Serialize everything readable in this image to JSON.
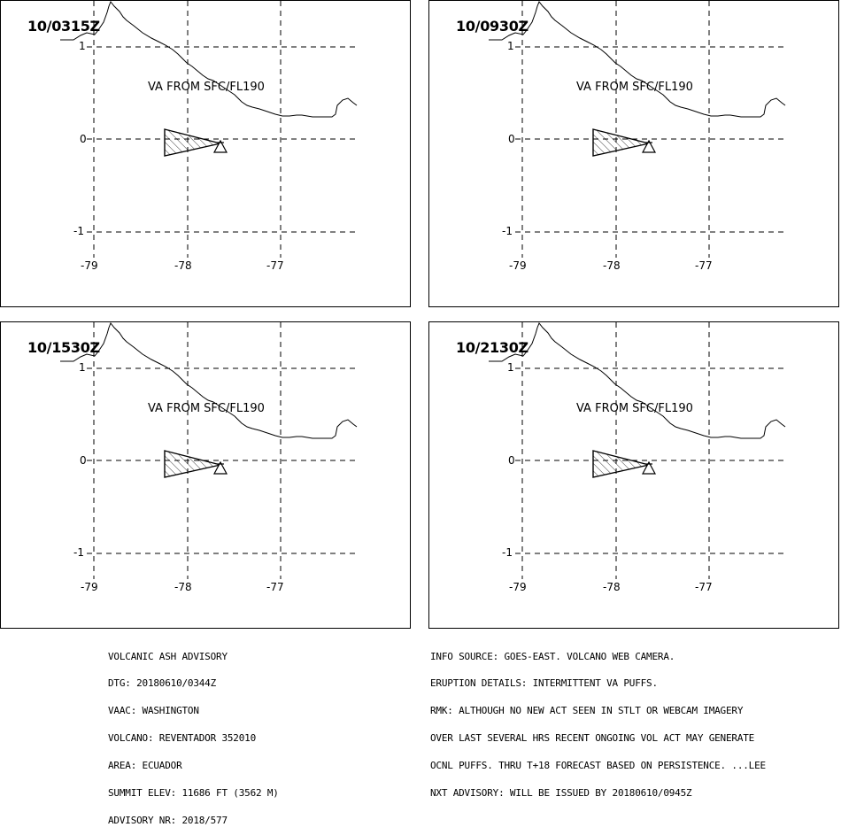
{
  "panels": [
    {
      "time": "10/0315Z",
      "va_label": "VA FROM SFC/FL190"
    },
    {
      "time": "10/0930Z",
      "va_label": "VA FROM SFC/FL190"
    },
    {
      "time": "10/1530Z",
      "va_label": "VA FROM SFC/FL190"
    },
    {
      "time": "10/2130Z",
      "va_label": "VA FROM SFC/FL190"
    }
  ],
  "axes": {
    "lat_ticks": [
      "1",
      "0",
      "-1"
    ],
    "lon_ticks": [
      "-79",
      "-78",
      "-77"
    ]
  },
  "advisory_left": [
    "VOLCANIC ASH ADVISORY",
    "DTG: 20180610/0344Z",
    "VAAC: WASHINGTON",
    "VOLCANO: REVENTADOR 352010",
    "AREA: ECUADOR",
    "SUMMIT ELEV: 11686 FT (3562 M)",
    "ADVISORY NR: 2018/577"
  ],
  "advisory_right": [
    "INFO SOURCE: GOES-EAST. VOLCANO WEB CAMERA.",
    "ERUPTION DETAILS: INTERMITTENT VA PUFFS.",
    "RMK: ALTHOUGH NO NEW ACT SEEN IN STLT OR WEBCAM IMAGERY",
    "OVER LAST SEVERAL HRS RECENT ONGOING VOL ACT MAY GENERATE",
    "OCNL PUFFS. THRU T+18 FORECAST BASED ON PERSISTENCE. ...LEE",
    "NXT ADVISORY: WILL BE ISSUED BY 20180610/0945Z"
  ]
}
